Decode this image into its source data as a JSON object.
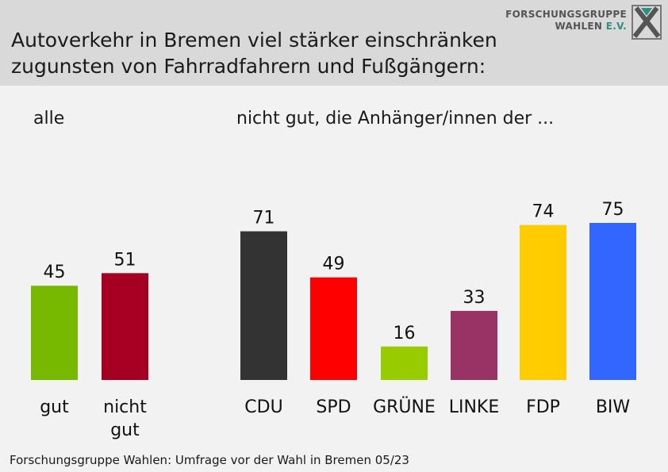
{
  "title_line1": "Autoverkehr in Bremen viel stärker einschränken",
  "title_line2": "zugunsten von Fahrradfahrern und Fußgängern:",
  "logo": {
    "line1": "FORSCHUNGSGRUPPE",
    "line2": "WAHLEN",
    "line2_suffix": "E.V."
  },
  "left_section_label": "alle",
  "right_section_label": "nicht gut, die Anhänger/innen der ...",
  "footer": "Forschungsgruppe Wahlen: Umfrage vor der Wahl in Bremen 05/23",
  "chart_data": [
    {
      "type": "bar",
      "categories": [
        "gut",
        "nicht gut"
      ],
      "values": [
        45,
        51
      ],
      "colors": [
        "#76b900",
        "#a50021"
      ],
      "title": "alle",
      "ylim": [
        0,
        100
      ],
      "grid": false
    },
    {
      "type": "bar",
      "categories": [
        "CDU",
        "SPD",
        "GRÜNE",
        "LINKE",
        "FDP",
        "BIW"
      ],
      "values": [
        71,
        49,
        16,
        33,
        74,
        75
      ],
      "colors": [
        "#333333",
        "#ff0000",
        "#99cc00",
        "#993366",
        "#ffcc00",
        "#3366ff"
      ],
      "title": "nicht gut, die Anhänger/innen der ...",
      "ylim": [
        0,
        100
      ],
      "grid": false
    }
  ]
}
